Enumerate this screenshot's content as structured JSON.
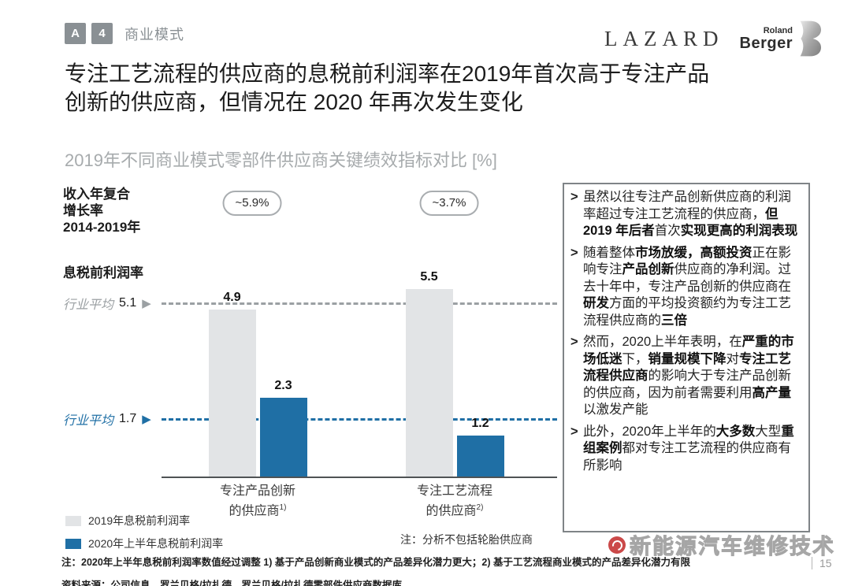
{
  "breadcrumb": {
    "chapter": "A",
    "section": "4",
    "label": "商业模式"
  },
  "logos": {
    "lazard": "LAZARD",
    "roland": "Roland",
    "berger": "Berger"
  },
  "title_lines": [
    "专注工艺流程的供应商的息税前利润率在2019年首次高于专注产品",
    "创新的供应商，但情况在 2020 年再次发生变化"
  ],
  "subtitle": "2019年不同商业模式零部件供应商关键绩效指标对比 [%]",
  "chart_data": {
    "type": "bar",
    "title": "2019年不同商业模式零部件供应商关键绩效指标对比 [%]",
    "axis_label": "息税前利润率",
    "ylim": [
      0,
      6
    ],
    "grid": false,
    "legend_position": "bottom-left",
    "categories": [
      {
        "lines": [
          "专注产品创新",
          "的供应商"
        ],
        "sup": "1)"
      },
      {
        "lines": [
          "专注工艺流程",
          "的供应商"
        ],
        "sup": "2)"
      }
    ],
    "series": [
      {
        "name": "2019年息税前利润率",
        "color": "#e2e4e6",
        "values": [
          4.9,
          5.5
        ]
      },
      {
        "name": "2020年上半年息税前利润率",
        "color": "#1f6fa5",
        "values": [
          2.3,
          1.2
        ]
      }
    ],
    "reference_lines": [
      {
        "label": "行业平均",
        "value": 5.1,
        "color": "#9ba0a3",
        "style": "dashed"
      },
      {
        "label": "行业平均",
        "value": 1.7,
        "color": "#1f6fa5",
        "style": "dashed"
      }
    ],
    "cagr": {
      "label_lines": [
        "收入年复合",
        "增长率",
        "2014-2019年"
      ],
      "values": [
        "~5.9%",
        "~3.7%"
      ]
    },
    "footnote": "注：分析不包括轮胎供应商"
  },
  "panel": {
    "marker": ">",
    "bullets": [
      [
        {
          "t": "虽然以往专注产品创新供应商的利润率超过专注工艺流程的供应商，",
          "b": false
        },
        {
          "t": "但 2019 年后者",
          "b": true
        },
        {
          "t": "首次",
          "b": false
        },
        {
          "t": "实现更高的利润表现",
          "b": true
        }
      ],
      [
        {
          "t": "随着整体",
          "b": false
        },
        {
          "t": "市场放缓，高额投资",
          "b": true
        },
        {
          "t": "正在影响专注",
          "b": false
        },
        {
          "t": "产品创新",
          "b": true
        },
        {
          "t": "供应商的净利润。过去十年中，专注产品创新的供应商在",
          "b": false
        },
        {
          "t": "研发",
          "b": true
        },
        {
          "t": "方面的平均投资额约为专注工艺流程供应商的",
          "b": false
        },
        {
          "t": "三倍",
          "b": true
        }
      ],
      [
        {
          "t": "然而，2020上半年表明，在",
          "b": false
        },
        {
          "t": "严重的市场低迷",
          "b": true
        },
        {
          "t": "下，",
          "b": false
        },
        {
          "t": "销量规模下降",
          "b": true
        },
        {
          "t": "对",
          "b": false
        },
        {
          "t": "专注工艺流程供应商",
          "b": true
        },
        {
          "t": "的影响大于专注产品创新的供应商，因为前者需要利用",
          "b": false
        },
        {
          "t": "高产量",
          "b": true
        },
        {
          "t": "以激发产能",
          "b": false
        }
      ],
      [
        {
          "t": "此外，2020年上半年的",
          "b": false
        },
        {
          "t": "大多数",
          "b": true
        },
        {
          "t": "大型",
          "b": false
        },
        {
          "t": "重组案例",
          "b": true
        },
        {
          "t": "都对专注工艺流程的供应商有所影响",
          "b": false
        }
      ]
    ]
  },
  "footnote": "注：2020年上半年息税前利润率数值经过调整 1) 基于产品创新商业模式的产品差异化潜力更大；2) 基于工艺流程商业模式的产品差异化潜力有限",
  "source": "资料来源：公司信息，罗兰贝格/拉扎德，罗兰贝格/拉扎德零部件供应商数据库",
  "watermark": {
    "text": "新能源汽车维修技术"
  },
  "page_number": "15",
  "colors": {
    "accent_blue": "#1f6fa5",
    "bar_gray": "#e2e4e6",
    "ref_gray": "#9ba0a3",
    "header_gray": "#8a9094",
    "watermark_red": "#c22a2a"
  }
}
